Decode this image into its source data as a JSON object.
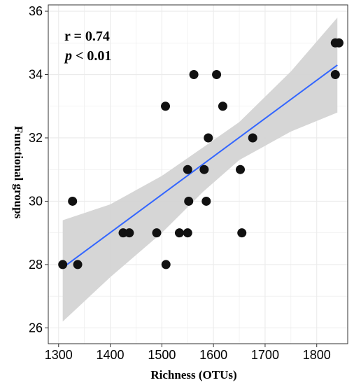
{
  "chart_data": {
    "type": "scatter",
    "xlabel": "Richness (OTUs)",
    "ylabel": "Functional groups",
    "xlim": [
      1280,
      1860
    ],
    "ylim": [
      25.5,
      36.2
    ],
    "x_ticks": [
      "1300",
      "1400",
      "1500",
      "1600",
      "1700",
      "1800"
    ],
    "y_ticks": [
      "26",
      "28",
      "30",
      "32",
      "34",
      "36"
    ],
    "grid": true,
    "annotations": {
      "r_text": "r = 0.74",
      "p_symbol": "p",
      "p_text": " < 0.01"
    },
    "points": [
      {
        "x": 1308,
        "y": 28
      },
      {
        "x": 1337,
        "y": 28
      },
      {
        "x": 1508,
        "y": 28
      },
      {
        "x": 1425,
        "y": 29
      },
      {
        "x": 1437,
        "y": 29
      },
      {
        "x": 1490,
        "y": 29
      },
      {
        "x": 1534,
        "y": 29
      },
      {
        "x": 1550,
        "y": 29
      },
      {
        "x": 1655,
        "y": 29
      },
      {
        "x": 1327,
        "y": 30
      },
      {
        "x": 1552,
        "y": 30
      },
      {
        "x": 1586,
        "y": 30
      },
      {
        "x": 1550,
        "y": 31
      },
      {
        "x": 1582,
        "y": 31
      },
      {
        "x": 1652,
        "y": 31
      },
      {
        "x": 1590,
        "y": 32
      },
      {
        "x": 1676,
        "y": 32
      },
      {
        "x": 1507,
        "y": 33
      },
      {
        "x": 1618,
        "y": 33
      },
      {
        "x": 1562,
        "y": 34
      },
      {
        "x": 1606,
        "y": 34
      },
      {
        "x": 1836,
        "y": 34
      },
      {
        "x": 1836,
        "y": 35
      },
      {
        "x": 1843,
        "y": 35
      }
    ],
    "fit_line": {
      "x": [
        1308,
        1840
      ],
      "y": [
        27.9,
        34.3
      ]
    },
    "confidence_band": {
      "x": [
        1308,
        1400,
        1500,
        1580,
        1650,
        1750,
        1840
      ],
      "lower": [
        26.2,
        27.6,
        29.0,
        30.3,
        31.3,
        32.2,
        32.8
      ],
      "upper": [
        29.4,
        29.9,
        30.8,
        31.7,
        32.5,
        34.1,
        35.8
      ]
    },
    "colors": {
      "point": "#111111",
      "line": "#3366ff",
      "band": "#d4d4d4",
      "grid": "#ebebeb",
      "frame": "#333333"
    }
  }
}
